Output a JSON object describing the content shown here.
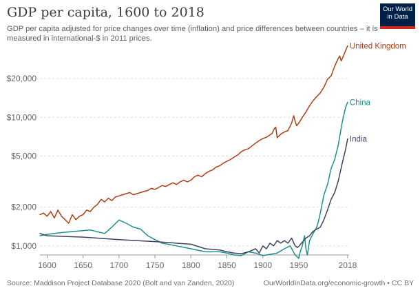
{
  "header": {
    "title": "GDP per capita, 1600 to 2018",
    "subtitle": "GDP per capita adjusted for price changes over time (inflation) and price differences between countries – it is measured in international-$ in 2011 prices."
  },
  "logo": {
    "text": "Our World\nin Data",
    "bg_color": "#002147",
    "accent_color": "#ce261e"
  },
  "footer": {
    "source": "Source: Maddison Project Database 2020 (Bolt and van Zanden, 2020)",
    "link": "OurWorldInData.org/economic-growth • CC BY"
  },
  "chart_data": {
    "type": "line",
    "title": "GDP per capita, 1600 to 2018",
    "xlabel": "",
    "ylabel": "",
    "y_scale": "log",
    "xlim": [
      1590,
      2020
    ],
    "ylim": [
      850,
      40000
    ],
    "x_ticks": [
      1600,
      1650,
      1700,
      1750,
      1800,
      1850,
      1900,
      1950,
      2018
    ],
    "y_ticks": [
      {
        "value": 1000,
        "label": "$1,000"
      },
      {
        "value": 2000,
        "label": "$2,000"
      },
      {
        "value": 5000,
        "label": "$5,000"
      },
      {
        "value": 10000,
        "label": "$10,000"
      },
      {
        "value": 20000,
        "label": "$20,000"
      }
    ],
    "grid": "horizontal dashed",
    "legend": "inline labels at line ends",
    "series": [
      {
        "name": "United Kingdom",
        "color": "#b33c13",
        "x": [
          1590,
          1595,
          1600,
          1605,
          1610,
          1615,
          1620,
          1625,
          1630,
          1635,
          1640,
          1645,
          1650,
          1655,
          1660,
          1665,
          1670,
          1675,
          1680,
          1685,
          1690,
          1695,
          1700,
          1705,
          1710,
          1715,
          1720,
          1725,
          1730,
          1735,
          1740,
          1745,
          1750,
          1755,
          1760,
          1765,
          1770,
          1775,
          1780,
          1785,
          1790,
          1795,
          1800,
          1805,
          1810,
          1815,
          1820,
          1825,
          1830,
          1835,
          1840,
          1845,
          1850,
          1855,
          1860,
          1865,
          1870,
          1875,
          1880,
          1885,
          1890,
          1895,
          1900,
          1905,
          1910,
          1913,
          1915,
          1918,
          1920,
          1925,
          1930,
          1935,
          1940,
          1943,
          1945,
          1947,
          1950,
          1955,
          1960,
          1965,
          1970,
          1975,
          1980,
          1985,
          1990,
          1995,
          2000,
          2005,
          2007,
          2009,
          2012,
          2015,
          2018
        ],
        "values": [
          1750,
          1800,
          1700,
          1850,
          1650,
          1900,
          1700,
          1600,
          1500,
          1750,
          1600,
          1700,
          1750,
          1900,
          1850,
          2000,
          2100,
          2300,
          2200,
          2350,
          2250,
          2400,
          2450,
          2500,
          2550,
          2600,
          2500,
          2550,
          2600,
          2650,
          2700,
          2800,
          2750,
          2850,
          2950,
          2900,
          3000,
          3100,
          3000,
          3150,
          3250,
          3150,
          3250,
          3450,
          3550,
          3450,
          3650,
          3800,
          3900,
          4100,
          4200,
          4400,
          4550,
          4700,
          4900,
          5100,
          5400,
          5600,
          5700,
          6000,
          6300,
          6600,
          6850,
          7000,
          7300,
          7500,
          8000,
          8400,
          6950,
          7400,
          7700,
          7900,
          9000,
          10300,
          9300,
          8600,
          9000,
          10000,
          11000,
          12300,
          13500,
          14500,
          15500,
          17200,
          19800,
          21000,
          25000,
          28800,
          30000,
          27500,
          29800,
          33000,
          36000
        ]
      },
      {
        "name": "China",
        "color": "#18918e",
        "x": [
          1590,
          1600,
          1620,
          1640,
          1660,
          1680,
          1690,
          1700,
          1710,
          1720,
          1730,
          1740,
          1750,
          1760,
          1780,
          1800,
          1820,
          1840,
          1850,
          1860,
          1870,
          1880,
          1890,
          1900,
          1910,
          1920,
          1930,
          1938,
          1945,
          1950,
          1952,
          1955,
          1958,
          1960,
          1962,
          1965,
          1970,
          1975,
          1978,
          1980,
          1985,
          1990,
          1995,
          2000,
          2005,
          2010,
          2015,
          2018
        ],
        "values": [
          1200,
          1230,
          1270,
          1300,
          1330,
          1250,
          1400,
          1590,
          1500,
          1400,
          1350,
          1200,
          1120,
          1050,
          1000,
          950,
          900,
          900,
          880,
          850,
          840,
          900,
          880,
          840,
          860,
          880,
          950,
          1000,
          850,
          800,
          900,
          1000,
          1200,
          950,
          850,
          1100,
          1250,
          1400,
          1600,
          1800,
          2500,
          3000,
          4000,
          4700,
          6100,
          8900,
          11900,
          13100
        ]
      },
      {
        "name": "India",
        "color": "#3d4262",
        "x": [
          1590,
          1600,
          1650,
          1700,
          1750,
          1800,
          1820,
          1840,
          1850,
          1860,
          1870,
          1880,
          1890,
          1895,
          1900,
          1905,
          1910,
          1915,
          1920,
          1925,
          1930,
          1935,
          1940,
          1945,
          1948,
          1950,
          1955,
          1960,
          1965,
          1970,
          1975,
          1980,
          1985,
          1990,
          1995,
          2000,
          2005,
          2010,
          2015,
          2018
        ],
        "values": [
          1250,
          1200,
          1170,
          1120,
          1080,
          1030,
          950,
          930,
          900,
          880,
          870,
          900,
          950,
          880,
          1000,
          950,
          1050,
          1000,
          1100,
          1050,
          1100,
          1050,
          1150,
          1000,
          970,
          990,
          1070,
          1150,
          1200,
          1300,
          1350,
          1400,
          1600,
          1900,
          2300,
          2600,
          3200,
          4300,
          5600,
          6800
        ]
      }
    ]
  }
}
